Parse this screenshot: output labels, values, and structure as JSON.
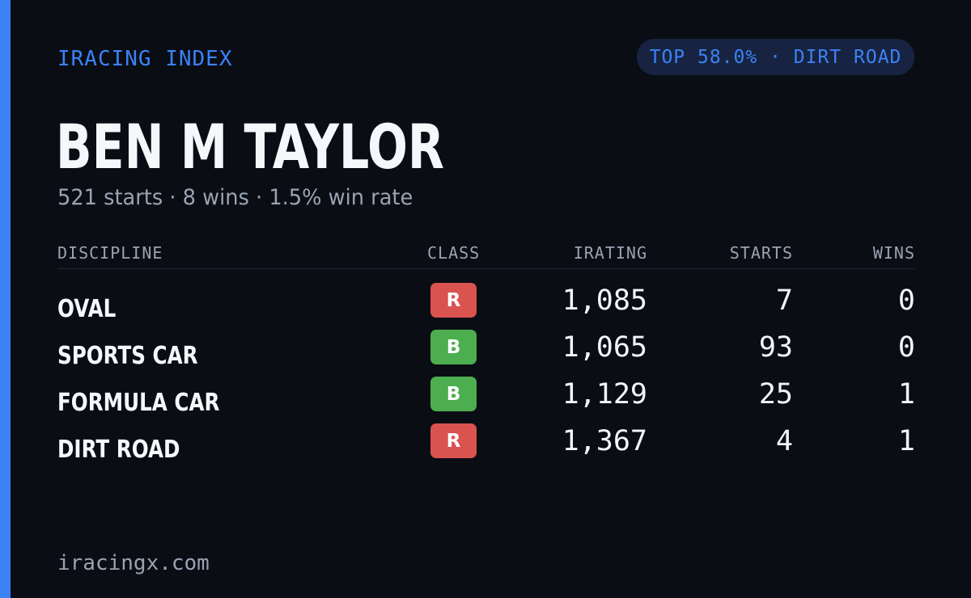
{
  "brand": "IRACING INDEX",
  "rank_pill": "TOP 58.0% · DIRT ROAD",
  "driver_name": "BEN M TAYLOR",
  "summary": "521 starts · 8 wins · 1.5% win rate",
  "table": {
    "headers": {
      "discipline": "DISCIPLINE",
      "class": "CLASS",
      "irating": "IRATING",
      "starts": "STARTS",
      "wins": "WINS"
    },
    "rows": [
      {
        "discipline": "OVAL",
        "class": "R",
        "class_color": "#d9534f",
        "irating": "1,085",
        "starts": "7",
        "wins": "0"
      },
      {
        "discipline": "SPORTS CAR",
        "class": "B",
        "class_color": "#4cae4f",
        "irating": "1,065",
        "starts": "93",
        "wins": "0"
      },
      {
        "discipline": "FORMULA CAR",
        "class": "B",
        "class_color": "#4cae4f",
        "irating": "1,129",
        "starts": "25",
        "wins": "1"
      },
      {
        "discipline": "DIRT ROAD",
        "class": "R",
        "class_color": "#d9534f",
        "irating": "1,367",
        "starts": "4",
        "wins": "1"
      }
    ]
  },
  "footer": "iracingx.com",
  "colors": {
    "accent": "#3b82f6",
    "background": "#0a0d14",
    "pill_background": "#172340",
    "muted_text": "#9aa3b2",
    "class_r": "#d9534f",
    "class_b": "#4cae4f"
  }
}
